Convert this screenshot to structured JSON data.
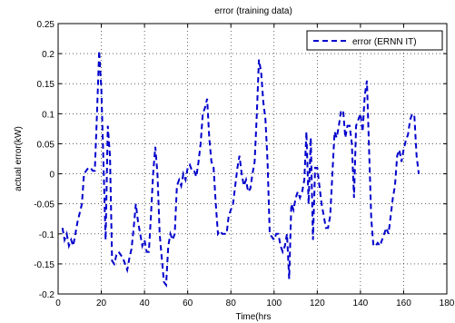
{
  "chart_data": {
    "type": "line",
    "title": "error (training data)",
    "xlabel": "Time(hrs",
    "ylabel": "actual error(kW)",
    "xlim": [
      0,
      180
    ],
    "ylim": [
      -0.2,
      0.25
    ],
    "x_ticks": [
      0,
      20,
      40,
      60,
      80,
      100,
      120,
      140,
      160,
      180
    ],
    "y_ticks": [
      -0.2,
      -0.15,
      -0.1,
      -0.05,
      0,
      0.05,
      0.1,
      0.15,
      0.2,
      0.25
    ],
    "x_tick_labels": [
      "0",
      "20",
      "40",
      "60",
      "80",
      "100",
      "120",
      "140",
      "160",
      "180"
    ],
    "y_tick_labels": [
      "-0.2",
      "-0.15",
      "-0.1",
      "-0.05",
      "0",
      "0.05",
      "0.1",
      "0.15",
      "0.2",
      "0.25"
    ],
    "grid": true,
    "legend_position": "top-right",
    "series": [
      {
        "name": "error (ERNN IT)",
        "color": "#0000cc",
        "line_style": "dashed",
        "points": [
          [
            2,
            -0.09
          ],
          [
            3,
            -0.11
          ],
          [
            4,
            -0.1
          ],
          [
            5,
            -0.12
          ],
          [
            6,
            -0.11
          ],
          [
            7,
            -0.12
          ],
          [
            8,
            -0.1
          ],
          [
            9,
            -0.08
          ],
          [
            10,
            -0.065
          ],
          [
            11,
            -0.05
          ],
          [
            12,
            0.0
          ],
          [
            13,
            0.005
          ],
          [
            14,
            0.01
          ],
          [
            15,
            0.01
          ],
          [
            16,
            0.005
          ],
          [
            17,
            0.005
          ],
          [
            18,
            0.1
          ],
          [
            19,
            0.205
          ],
          [
            20,
            0.14
          ],
          [
            21,
            0.02
          ],
          [
            22,
            -0.11
          ],
          [
            23,
            0.08
          ],
          [
            24,
            0.03
          ],
          [
            25,
            -0.145
          ],
          [
            26,
            -0.15
          ],
          [
            27,
            -0.135
          ],
          [
            28,
            -0.13
          ],
          [
            29,
            -0.135
          ],
          [
            30,
            -0.14
          ],
          [
            31,
            -0.15
          ],
          [
            32,
            -0.16
          ],
          [
            33,
            -0.14
          ],
          [
            34,
            -0.125
          ],
          [
            35,
            -0.09
          ],
          [
            36,
            -0.05
          ],
          [
            37,
            -0.08
          ],
          [
            38,
            -0.1
          ],
          [
            39,
            -0.12
          ],
          [
            40,
            -0.11
          ],
          [
            41,
            -0.13
          ],
          [
            42,
            -0.13
          ],
          [
            43,
            -0.07
          ],
          [
            44,
            0.0
          ],
          [
            45,
            0.045
          ],
          [
            46,
            0.0
          ],
          [
            47,
            -0.1
          ],
          [
            48,
            -0.14
          ],
          [
            49,
            -0.18
          ],
          [
            50,
            -0.185
          ],
          [
            51,
            -0.12
          ],
          [
            52,
            -0.1
          ],
          [
            53,
            -0.11
          ],
          [
            54,
            -0.1
          ],
          [
            55,
            -0.02
          ],
          [
            56,
            -0.01
          ],
          [
            57,
            -0.02
          ],
          [
            58,
            0.0
          ],
          [
            59,
            -0.01
          ],
          [
            60,
            0.01
          ],
          [
            61,
            0.015
          ],
          [
            62,
            0.005
          ],
          [
            63,
            0.005
          ],
          [
            64,
            -0.005
          ],
          [
            65,
            0.02
          ],
          [
            66,
            0.05
          ],
          [
            67,
            0.1
          ],
          [
            68,
            0.11
          ],
          [
            69,
            0.125
          ],
          [
            70,
            0.06
          ],
          [
            71,
            0.02
          ],
          [
            72,
            0.01
          ],
          [
            73,
            -0.05
          ],
          [
            74,
            -0.1
          ],
          [
            75,
            -0.095
          ],
          [
            76,
            -0.1
          ],
          [
            77,
            -0.1
          ],
          [
            78,
            -0.1
          ],
          [
            79,
            -0.07
          ],
          [
            80,
            -0.06
          ],
          [
            81,
            -0.05
          ],
          [
            82,
            -0.02
          ],
          [
            83,
            0.01
          ],
          [
            84,
            0.03
          ],
          [
            85,
            0.0
          ],
          [
            86,
            -0.02
          ],
          [
            87,
            -0.01
          ],
          [
            88,
            -0.03
          ],
          [
            89,
            -0.025
          ],
          [
            90,
            0.0
          ],
          [
            91,
            0.02
          ],
          [
            92,
            0.1
          ],
          [
            93,
            0.19
          ],
          [
            94,
            0.17
          ],
          [
            95,
            0.12
          ],
          [
            96,
            0.09
          ],
          [
            97,
            0.02
          ],
          [
            98,
            -0.1
          ],
          [
            99,
            -0.105
          ],
          [
            100,
            -0.11
          ],
          [
            101,
            -0.1
          ],
          [
            102,
            -0.1
          ],
          [
            103,
            -0.12
          ],
          [
            104,
            -0.13
          ],
          [
            105,
            -0.12
          ],
          [
            106,
            -0.1
          ],
          [
            107,
            -0.175
          ],
          [
            108,
            -0.05
          ],
          [
            109,
            -0.06
          ],
          [
            110,
            -0.04
          ],
          [
            111,
            -0.03
          ],
          [
            112,
            -0.04
          ],
          [
            113,
            -0.03
          ],
          [
            114,
            -0.01
          ],
          [
            115,
            0.07
          ],
          [
            116,
            -0.05
          ],
          [
            117,
            0.06
          ],
          [
            118,
            -0.11
          ],
          [
            119,
            0.01
          ],
          [
            120,
            0.01
          ],
          [
            121,
            -0.02
          ],
          [
            122,
            -0.05
          ],
          [
            123,
            -0.07
          ],
          [
            124,
            -0.09
          ],
          [
            125,
            -0.09
          ],
          [
            126,
            -0.07
          ],
          [
            127,
            0.0
          ],
          [
            128,
            0.07
          ],
          [
            129,
            0.06
          ],
          [
            130,
            0.08
          ],
          [
            131,
            0.105
          ],
          [
            132,
            0.105
          ],
          [
            133,
            0.06
          ],
          [
            134,
            0.08
          ],
          [
            135,
            0.08
          ],
          [
            136,
            0.05
          ],
          [
            137,
            -0.04
          ],
          [
            138,
            0.08
          ],
          [
            139,
            0.09
          ],
          [
            140,
            0.1
          ],
          [
            141,
            0.07
          ],
          [
            142,
            0.13
          ],
          [
            143,
            0.155
          ],
          [
            144,
            0.04
          ],
          [
            145,
            -0.075
          ],
          [
            146,
            -0.12
          ],
          [
            147,
            -0.12
          ],
          [
            148,
            -0.115
          ],
          [
            149,
            -0.12
          ],
          [
            150,
            -0.11
          ],
          [
            151,
            -0.1
          ],
          [
            152,
            -0.09
          ],
          [
            153,
            -0.1
          ],
          [
            154,
            -0.07
          ],
          [
            155,
            -0.04
          ],
          [
            156,
            -0.02
          ],
          [
            157,
            0.03
          ],
          [
            158,
            0.04
          ],
          [
            159,
            0.02
          ],
          [
            160,
            0.04
          ],
          [
            161,
            0.055
          ],
          [
            162,
            0.065
          ],
          [
            163,
            0.09
          ],
          [
            164,
            0.1
          ],
          [
            165,
            0.095
          ],
          [
            166,
            0.03
          ],
          [
            167,
            0.0
          ]
        ]
      }
    ]
  }
}
